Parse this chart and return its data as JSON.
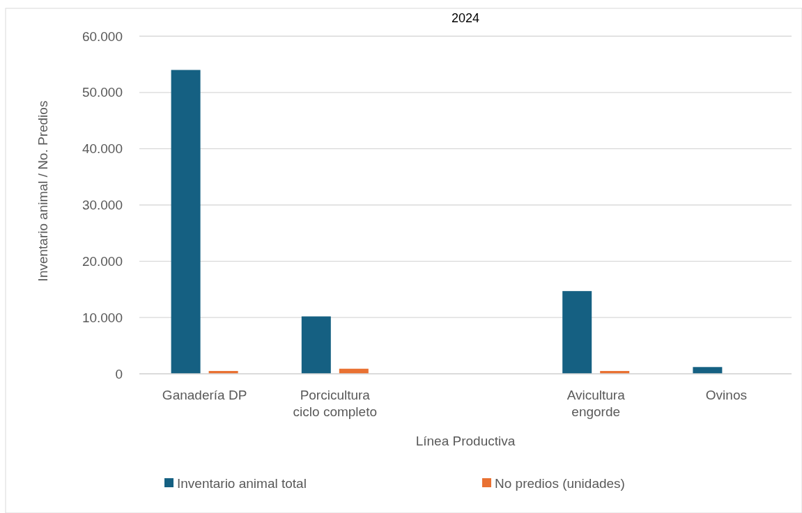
{
  "chart_data": {
    "type": "bar",
    "title": "2024",
    "xlabel": "Línea Productiva",
    "ylabel": "Inventario animal / No. Predios",
    "categories": [
      "Ganadería DP",
      "Porcicultura ciclo completo",
      null,
      "Avicultura engorde",
      "Ovinos"
    ],
    "series": [
      {
        "name": "Inventario animal total",
        "color": "#156082",
        "values": [
          54000,
          10200,
          null,
          14700,
          1200
        ]
      },
      {
        "name": "No predios (unidades)",
        "color": "#e97132",
        "values": [
          500,
          900,
          null,
          500,
          null
        ]
      }
    ],
    "ylim": [
      0,
      60000
    ],
    "yticks": [
      {
        "value": 0,
        "label": "0"
      },
      {
        "value": 10000,
        "label": "10.000"
      },
      {
        "value": 20000,
        "label": "20.000"
      },
      {
        "value": 30000,
        "label": "30.000"
      },
      {
        "value": 40000,
        "label": "40.000"
      },
      {
        "value": 50000,
        "label": "50.000"
      },
      {
        "value": 60000,
        "label": "60.000"
      }
    ],
    "grid": "y",
    "legend": "bottom"
  }
}
